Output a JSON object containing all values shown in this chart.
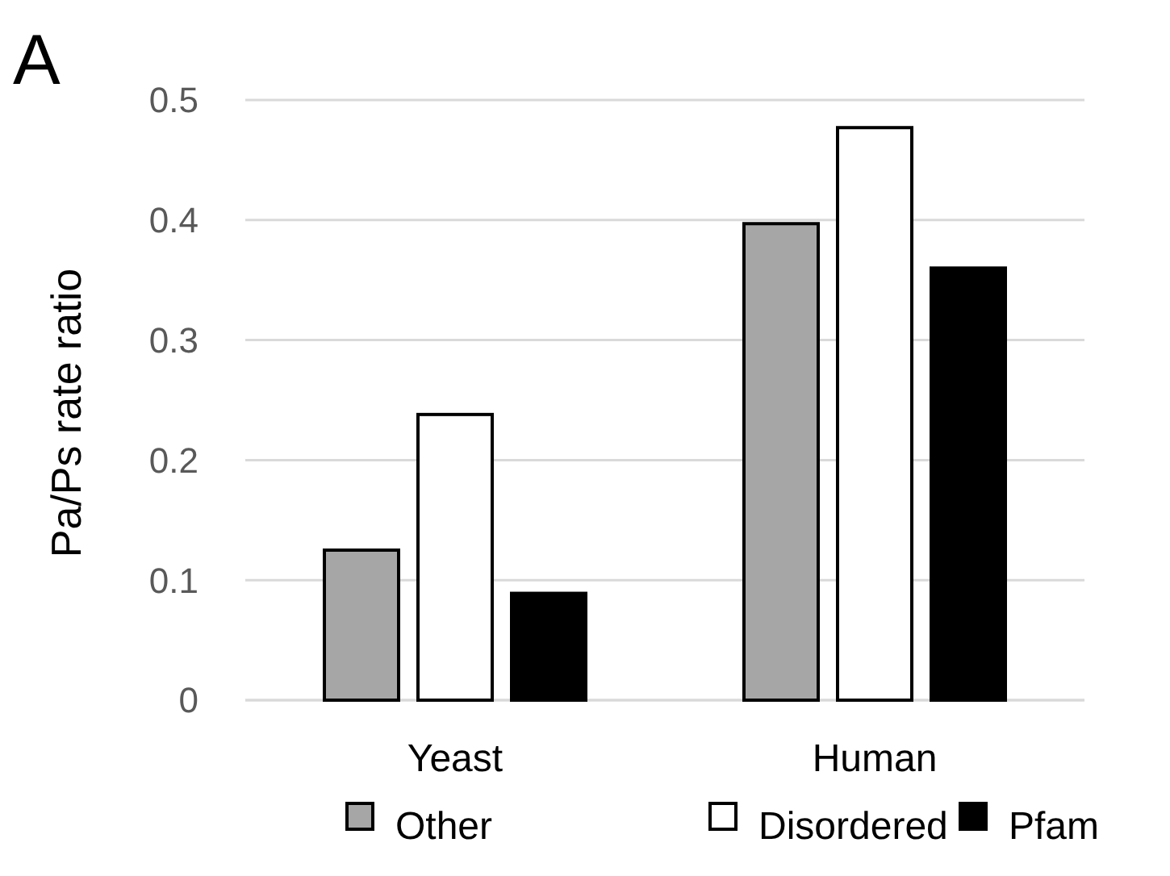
{
  "chart_data": {
    "type": "bar",
    "ylabel": "Pa/Ps rate ratio",
    "annotations": [
      "A"
    ],
    "categories": [
      "Yeast",
      "Human"
    ],
    "series": [
      {
        "name": "Other",
        "color": "#a6a6a6",
        "values": [
          0.125,
          0.397
        ]
      },
      {
        "name": "Disordered",
        "color": "#ffffff",
        "values": [
          0.238,
          0.477
        ]
      },
      {
        "name": "Pfam",
        "color": "#000000",
        "values": [
          0.089,
          0.36
        ]
      }
    ],
    "ylim": [
      0,
      0.5
    ],
    "yticks": [
      0,
      0.1,
      0.2,
      0.3,
      0.4,
      0.5
    ],
    "grid": "y",
    "legend": "bottom"
  }
}
